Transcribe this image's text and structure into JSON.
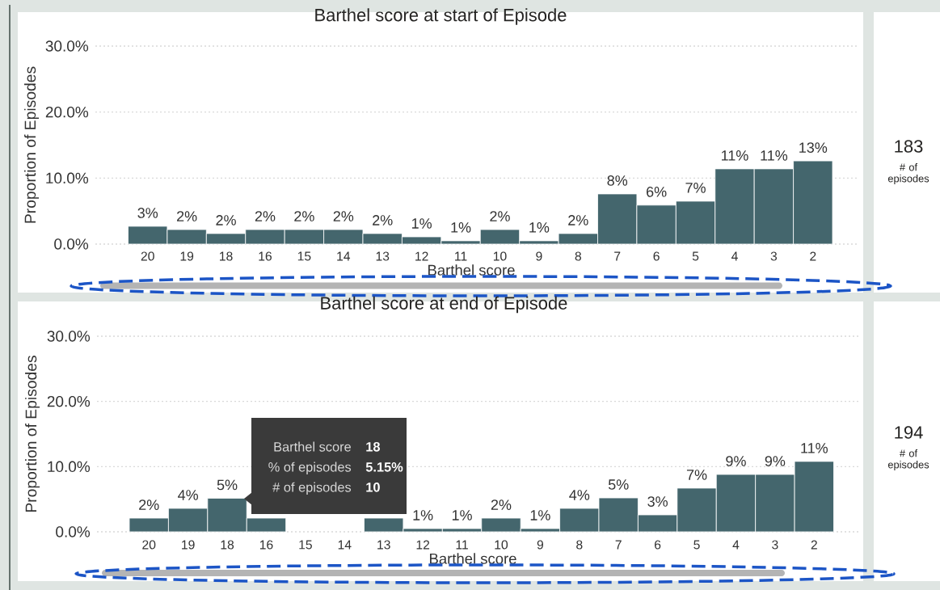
{
  "chart_data": [
    {
      "type": "bar",
      "title": "Barthel score at start of Episode",
      "xlabel": "Barthel score",
      "ylabel": "Proportion of Episodes",
      "categories": [
        "20",
        "19",
        "18",
        "16",
        "15",
        "14",
        "13",
        "12",
        "11",
        "10",
        "9",
        "8",
        "7",
        "6",
        "5",
        "4",
        "3",
        "2"
      ],
      "values": [
        2.7,
        2.2,
        1.6,
        2.2,
        2.2,
        2.2,
        1.6,
        1.1,
        0.5,
        2.2,
        0.5,
        1.6,
        7.6,
        5.9,
        6.5,
        11.4,
        11.4,
        12.6
      ],
      "value_labels": [
        "3%",
        "2%",
        "2%",
        "2%",
        "2%",
        "2%",
        "2%",
        "1%",
        "1%",
        "2%",
        "1%",
        "2%",
        "8%",
        "6%",
        "7%",
        "11%",
        "11%",
        "13%"
      ],
      "color": "#44666d",
      "ylim": [
        0,
        30
      ],
      "yticks": [
        {
          "value": 0,
          "label": "0.0%"
        },
        {
          "value": 10,
          "label": "10.0%"
        },
        {
          "value": 20,
          "label": "20.0%"
        },
        {
          "value": 30,
          "label": "30.0%"
        }
      ],
      "grid": "y",
      "annotations": [
        "183",
        "# of episodes"
      ]
    },
    {
      "type": "bar",
      "title": "Barthel score at end of Episode",
      "xlabel": "Barthel score",
      "ylabel": "Proportion of Episodes",
      "categories": [
        "20",
        "19",
        "18",
        "16",
        "15",
        "14",
        "13",
        "12",
        "11",
        "10",
        "9",
        "8",
        "7",
        "6",
        "5",
        "4",
        "3",
        "2"
      ],
      "values": [
        2.1,
        3.6,
        5.15,
        2.1,
        null,
        null,
        2.1,
        0.5,
        0.5,
        2.1,
        0.5,
        3.6,
        5.2,
        2.6,
        6.7,
        8.8,
        8.8,
        10.8
      ],
      "value_labels": [
        "2%",
        "4%",
        "5%",
        null,
        null,
        null,
        null,
        "1%",
        "1%",
        "2%",
        "1%",
        "4%",
        "5%",
        "3%",
        "7%",
        "9%",
        "9%",
        "11%"
      ],
      "color": "#44666d",
      "ylim": [
        0,
        30
      ],
      "yticks": [
        {
          "value": 0,
          "label": "0.0%"
        },
        {
          "value": 10,
          "label": "10.0%"
        },
        {
          "value": 20,
          "label": "20.0%"
        },
        {
          "value": 30,
          "label": "30.0%"
        }
      ],
      "grid": "y",
      "annotations": [
        "194",
        "# of episodes",
        "Barthel score",
        "18",
        "% of episodes",
        "5.15%",
        "# of episodes",
        "10"
      ]
    }
  ]
}
